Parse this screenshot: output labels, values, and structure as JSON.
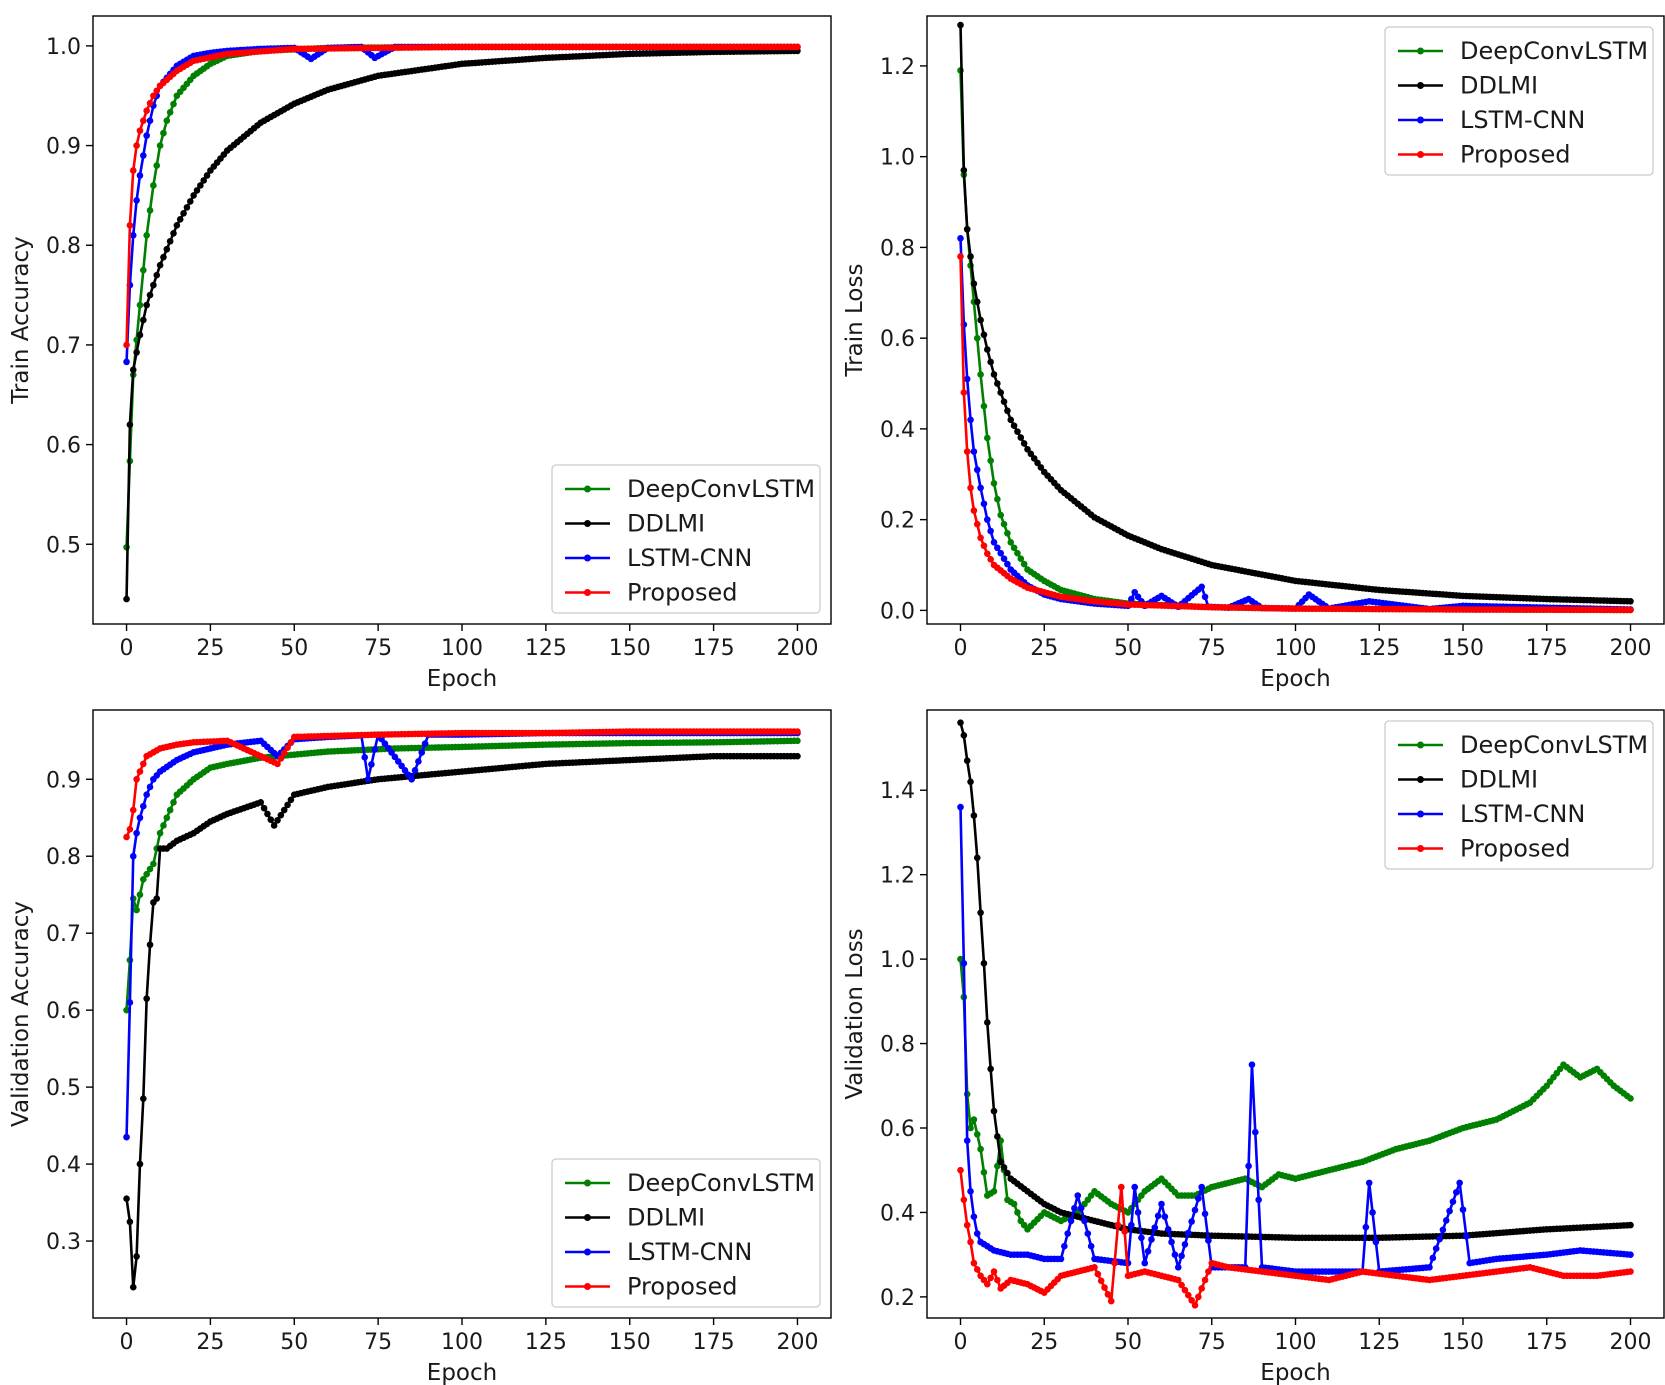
{
  "chart_data": [
    {
      "type": "line",
      "xlabel": "Epoch",
      "ylabel": "Train Accuracy",
      "xlim": [
        -10,
        210
      ],
      "ylim": [
        0.42,
        1.03
      ],
      "xticks": [
        "0",
        "25",
        "50",
        "75",
        "100",
        "125",
        "150",
        "175",
        "200"
      ],
      "yticks": [
        "0.5",
        "0.6",
        "0.7",
        "0.8",
        "0.9",
        "1.0"
      ],
      "legend": "lower-right",
      "grid": false,
      "series": [
        {
          "name": "DeepConvLSTM",
          "color": "#008000",
          "x": [
            0,
            2,
            4,
            6,
            8,
            10,
            12,
            15,
            20,
            25,
            30,
            40,
            60,
            100,
            150,
            200
          ],
          "y": [
            0.497,
            0.67,
            0.74,
            0.81,
            0.86,
            0.9,
            0.925,
            0.95,
            0.97,
            0.982,
            0.99,
            0.995,
            0.998,
            0.999,
            0.999,
            0.999
          ]
        },
        {
          "name": "DDLMI",
          "color": "#000000",
          "x": [
            0,
            1,
            2,
            4,
            6,
            8,
            10,
            15,
            20,
            25,
            30,
            40,
            50,
            60,
            75,
            100,
            125,
            150,
            175,
            200
          ],
          "y": [
            0.445,
            0.62,
            0.675,
            0.71,
            0.74,
            0.76,
            0.78,
            0.82,
            0.85,
            0.875,
            0.895,
            0.923,
            0.942,
            0.956,
            0.97,
            0.982,
            0.988,
            0.992,
            0.994,
            0.995
          ]
        },
        {
          "name": "LSTM-CNN",
          "color": "#0000ff",
          "x": [
            0,
            1,
            2,
            3,
            4,
            6,
            8,
            10,
            15,
            20,
            25,
            30,
            40,
            50,
            55,
            60,
            70,
            74,
            80,
            100,
            125,
            150,
            200
          ],
          "y": [
            0.683,
            0.76,
            0.81,
            0.845,
            0.87,
            0.91,
            0.94,
            0.96,
            0.98,
            0.99,
            0.993,
            0.995,
            0.997,
            0.998,
            0.987,
            0.998,
            0.999,
            0.988,
            0.999,
            0.999,
            0.999,
            0.999,
            0.999
          ]
        },
        {
          "name": "Proposed",
          "color": "#ff0000",
          "x": [
            0,
            1,
            2,
            3,
            4,
            6,
            8,
            10,
            15,
            20,
            30,
            50,
            100,
            150,
            200
          ],
          "y": [
            0.7,
            0.82,
            0.875,
            0.9,
            0.915,
            0.935,
            0.95,
            0.96,
            0.975,
            0.985,
            0.992,
            0.997,
            0.999,
            0.999,
            0.999
          ]
        }
      ]
    },
    {
      "type": "line",
      "xlabel": "Epoch",
      "ylabel": "Train Loss",
      "xlim": [
        -10,
        210
      ],
      "ylim": [
        -0.03,
        1.31
      ],
      "xticks": [
        "0",
        "25",
        "50",
        "75",
        "100",
        "125",
        "150",
        "175",
        "200"
      ],
      "yticks": [
        "0.0",
        "0.2",
        "0.4",
        "0.6",
        "0.8",
        "1.0",
        "1.2"
      ],
      "legend": "upper-right",
      "grid": false,
      "series": [
        {
          "name": "DeepConvLSTM",
          "color": "#008000",
          "x": [
            0,
            1,
            2,
            4,
            6,
            8,
            10,
            12,
            15,
            20,
            25,
            30,
            40,
            50,
            75,
            100,
            150,
            200
          ],
          "y": [
            1.19,
            0.96,
            0.84,
            0.68,
            0.52,
            0.38,
            0.28,
            0.21,
            0.15,
            0.09,
            0.065,
            0.045,
            0.025,
            0.015,
            0.007,
            0.004,
            0.002,
            0.001
          ]
        },
        {
          "name": "DDLMI",
          "color": "#000000",
          "x": [
            0,
            1,
            2,
            4,
            6,
            8,
            10,
            15,
            20,
            25,
            30,
            40,
            50,
            60,
            75,
            100,
            125,
            150,
            175,
            200
          ],
          "y": [
            1.29,
            0.97,
            0.84,
            0.72,
            0.64,
            0.575,
            0.52,
            0.42,
            0.355,
            0.305,
            0.265,
            0.205,
            0.165,
            0.135,
            0.1,
            0.065,
            0.045,
            0.032,
            0.025,
            0.02
          ]
        },
        {
          "name": "LSTM-CNN",
          "color": "#0000ff",
          "x": [
            0,
            1,
            2,
            3,
            4,
            6,
            8,
            10,
            15,
            20,
            25,
            30,
            40,
            50,
            52,
            55,
            60,
            65,
            72,
            74,
            80,
            86,
            90,
            100,
            104,
            110,
            122,
            140,
            150,
            200
          ],
          "y": [
            0.82,
            0.63,
            0.51,
            0.42,
            0.35,
            0.27,
            0.2,
            0.15,
            0.09,
            0.055,
            0.035,
            0.025,
            0.015,
            0.01,
            0.04,
            0.01,
            0.032,
            0.008,
            0.052,
            0.008,
            0.006,
            0.025,
            0.005,
            0.004,
            0.035,
            0.004,
            0.02,
            0.003,
            0.01,
            0.002
          ]
        },
        {
          "name": "Proposed",
          "color": "#ff0000",
          "x": [
            0,
            1,
            2,
            3,
            4,
            6,
            8,
            10,
            15,
            20,
            25,
            30,
            40,
            50,
            75,
            100,
            150,
            200
          ],
          "y": [
            0.78,
            0.48,
            0.35,
            0.27,
            0.22,
            0.16,
            0.125,
            0.1,
            0.07,
            0.05,
            0.04,
            0.03,
            0.02,
            0.013,
            0.007,
            0.004,
            0.002,
            0.001
          ]
        }
      ]
    },
    {
      "type": "line",
      "xlabel": "Epoch",
      "ylabel": "Validation Accuracy",
      "xlim": [
        -10,
        210
      ],
      "ylim": [
        0.2,
        0.99
      ],
      "xticks": [
        "0",
        "25",
        "50",
        "75",
        "100",
        "125",
        "150",
        "175",
        "200"
      ],
      "yticks": [
        "0.3",
        "0.4",
        "0.5",
        "0.6",
        "0.7",
        "0.8",
        "0.9"
      ],
      "legend": "lower-right",
      "grid": false,
      "series": [
        {
          "name": "DeepConvLSTM",
          "color": "#008000",
          "x": [
            0,
            1,
            2,
            3,
            5,
            8,
            10,
            12,
            15,
            20,
            25,
            30,
            40,
            50,
            60,
            70,
            80,
            100,
            125,
            150,
            175,
            200
          ],
          "y": [
            0.6,
            0.665,
            0.745,
            0.73,
            0.77,
            0.79,
            0.83,
            0.85,
            0.88,
            0.9,
            0.915,
            0.92,
            0.928,
            0.932,
            0.936,
            0.938,
            0.94,
            0.942,
            0.945,
            0.947,
            0.948,
            0.95
          ]
        },
        {
          "name": "DDLMI",
          "color": "#000000",
          "x": [
            0,
            1,
            2,
            3,
            4,
            5,
            6,
            7,
            8,
            9,
            10,
            12,
            15,
            20,
            25,
            30,
            40,
            44,
            50,
            60,
            75,
            100,
            125,
            150,
            175,
            200
          ],
          "y": [
            0.355,
            0.325,
            0.24,
            0.28,
            0.4,
            0.485,
            0.615,
            0.685,
            0.74,
            0.745,
            0.81,
            0.81,
            0.82,
            0.83,
            0.845,
            0.855,
            0.87,
            0.84,
            0.88,
            0.89,
            0.9,
            0.91,
            0.92,
            0.925,
            0.93,
            0.93
          ]
        },
        {
          "name": "LSTM-CNN",
          "color": "#0000ff",
          "x": [
            0,
            1,
            2,
            3,
            4,
            6,
            8,
            10,
            15,
            20,
            25,
            30,
            40,
            45,
            50,
            60,
            70,
            72,
            75,
            85,
            90,
            100,
            125,
            150,
            175,
            200
          ],
          "y": [
            0.435,
            0.61,
            0.8,
            0.83,
            0.85,
            0.88,
            0.9,
            0.91,
            0.925,
            0.935,
            0.94,
            0.945,
            0.95,
            0.93,
            0.952,
            0.955,
            0.957,
            0.9,
            0.958,
            0.9,
            0.958,
            0.958,
            0.96,
            0.96,
            0.96,
            0.96
          ]
        },
        {
          "name": "Proposed",
          "color": "#ff0000",
          "x": [
            0,
            1,
            2,
            3,
            4,
            6,
            8,
            10,
            15,
            20,
            30,
            45,
            50,
            75,
            100,
            125,
            150,
            175,
            200
          ],
          "y": [
            0.825,
            0.835,
            0.86,
            0.9,
            0.91,
            0.93,
            0.935,
            0.94,
            0.945,
            0.948,
            0.95,
            0.92,
            0.955,
            0.958,
            0.96,
            0.96,
            0.962,
            0.962,
            0.962
          ]
        }
      ]
    },
    {
      "type": "line",
      "xlabel": "Epoch",
      "ylabel": "Validation Loss",
      "xlim": [
        -10,
        210
      ],
      "ylim": [
        0.15,
        1.59
      ],
      "xticks": [
        "0",
        "25",
        "50",
        "75",
        "100",
        "125",
        "150",
        "175",
        "200"
      ],
      "yticks": [
        "0.2",
        "0.4",
        "0.6",
        "0.8",
        "1.0",
        "1.2",
        "1.4"
      ],
      "legend": "upper-right",
      "grid": false,
      "series": [
        {
          "name": "DeepConvLSTM",
          "color": "#008000",
          "x": [
            0,
            1,
            2,
            3,
            4,
            6,
            8,
            10,
            12,
            14,
            16,
            18,
            20,
            25,
            30,
            35,
            40,
            45,
            50,
            55,
            60,
            65,
            70,
            75,
            80,
            85,
            90,
            95,
            100,
            110,
            120,
            130,
            140,
            150,
            160,
            170,
            175,
            180,
            185,
            190,
            195,
            200
          ],
          "y": [
            1.0,
            0.91,
            0.68,
            0.6,
            0.62,
            0.55,
            0.44,
            0.45,
            0.57,
            0.43,
            0.42,
            0.38,
            0.36,
            0.4,
            0.38,
            0.4,
            0.45,
            0.42,
            0.4,
            0.45,
            0.48,
            0.44,
            0.44,
            0.46,
            0.47,
            0.48,
            0.46,
            0.49,
            0.48,
            0.5,
            0.52,
            0.55,
            0.57,
            0.6,
            0.62,
            0.66,
            0.7,
            0.75,
            0.72,
            0.74,
            0.7,
            0.67
          ]
        },
        {
          "name": "DDLMI",
          "color": "#000000",
          "x": [
            0,
            1,
            2,
            3,
            4,
            5,
            6,
            7,
            8,
            9,
            10,
            12,
            15,
            20,
            25,
            30,
            40,
            50,
            60,
            75,
            100,
            125,
            150,
            175,
            200
          ],
          "y": [
            1.56,
            1.53,
            1.47,
            1.42,
            1.34,
            1.24,
            1.11,
            0.99,
            0.85,
            0.74,
            0.64,
            0.52,
            0.48,
            0.45,
            0.42,
            0.4,
            0.38,
            0.36,
            0.35,
            0.345,
            0.34,
            0.34,
            0.345,
            0.36,
            0.37
          ]
        },
        {
          "name": "LSTM-CNN",
          "color": "#0000ff",
          "x": [
            0,
            1,
            2,
            3,
            4,
            5,
            6,
            8,
            10,
            15,
            20,
            25,
            30,
            35,
            40,
            50,
            52,
            55,
            60,
            65,
            72,
            75,
            80,
            85,
            87,
            90,
            100,
            110,
            120,
            122,
            125,
            140,
            149,
            152,
            160,
            175,
            185,
            200
          ],
          "y": [
            1.36,
            0.99,
            0.57,
            0.45,
            0.39,
            0.35,
            0.33,
            0.32,
            0.31,
            0.3,
            0.3,
            0.29,
            0.29,
            0.44,
            0.29,
            0.28,
            0.46,
            0.28,
            0.42,
            0.27,
            0.46,
            0.27,
            0.27,
            0.27,
            0.75,
            0.27,
            0.26,
            0.26,
            0.26,
            0.47,
            0.26,
            0.27,
            0.47,
            0.28,
            0.29,
            0.3,
            0.31,
            0.3
          ]
        },
        {
          "name": "Proposed",
          "color": "#ff0000",
          "x": [
            0,
            1,
            2,
            3,
            4,
            6,
            8,
            10,
            12,
            15,
            20,
            25,
            30,
            35,
            40,
            45,
            48,
            50,
            55,
            60,
            65,
            70,
            75,
            80,
            90,
            100,
            110,
            120,
            130,
            140,
            150,
            160,
            170,
            180,
            190,
            200
          ],
          "y": [
            0.5,
            0.43,
            0.37,
            0.33,
            0.28,
            0.25,
            0.23,
            0.26,
            0.22,
            0.24,
            0.23,
            0.21,
            0.25,
            0.26,
            0.27,
            0.19,
            0.46,
            0.25,
            0.26,
            0.25,
            0.24,
            0.18,
            0.28,
            0.27,
            0.26,
            0.25,
            0.24,
            0.26,
            0.25,
            0.24,
            0.25,
            0.26,
            0.27,
            0.25,
            0.25,
            0.26
          ]
        }
      ]
    }
  ]
}
